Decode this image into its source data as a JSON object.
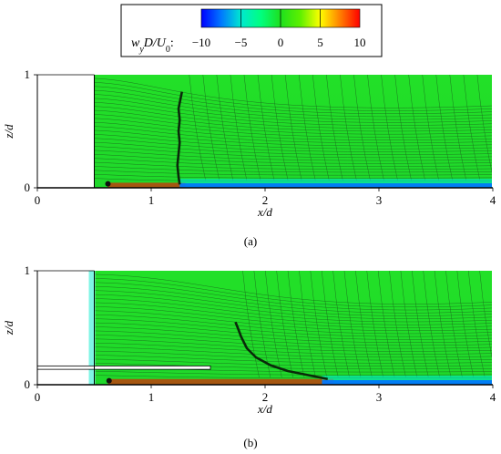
{
  "colorbar": {
    "label_parts": {
      "w": "w",
      "y": "y",
      "d": "D/U",
      "zero": "0",
      "colon": ":"
    },
    "ticks": [
      "−10",
      "−5",
      "0",
      "5",
      "10"
    ],
    "range": [
      -10,
      10
    ],
    "colors": [
      "#0000ff",
      "#0078ff",
      "#00e8d0",
      "#00ff80",
      "#1ee01e",
      "#5ef000",
      "#ffff00",
      "#ff8000",
      "#ff0000"
    ]
  },
  "chart_data": [
    {
      "type": "heatmap",
      "panel_label": "(a)",
      "xlabel": "x/d",
      "ylabel": "z/d",
      "xlim": [
        0,
        4
      ],
      "ylim": [
        0,
        1
      ],
      "xticks": [
        "0",
        "1",
        "2",
        "3",
        "4"
      ],
      "yticks": [
        "0",
        "1"
      ],
      "body_x": 0.5,
      "plate": null,
      "separation_line": [
        [
          1.25,
          0.03
        ],
        [
          1.24,
          0.1
        ],
        [
          1.23,
          0.2
        ],
        [
          1.24,
          0.3
        ],
        [
          1.25,
          0.4
        ],
        [
          1.24,
          0.5
        ],
        [
          1.25,
          0.6
        ],
        [
          1.24,
          0.7
        ],
        [
          1.26,
          0.8
        ],
        [
          1.27,
          0.85
        ]
      ],
      "bands": [
        {
          "x": [
            0.62,
            1.3
          ],
          "z": [
            0.0,
            0.045
          ],
          "value": 10
        },
        {
          "x": [
            1.25,
            4.0
          ],
          "z": [
            0.0,
            0.04
          ],
          "value": -8
        },
        {
          "x": [
            1.25,
            4.0
          ],
          "z": [
            0.04,
            0.08
          ],
          "value": -4
        }
      ],
      "vortex_x": 0.62
    },
    {
      "type": "heatmap",
      "panel_label": "(b)",
      "xlabel": "x/d",
      "ylabel": "z/d",
      "xlim": [
        0,
        4
      ],
      "ylim": [
        0,
        1
      ],
      "xticks": [
        "0",
        "1",
        "2",
        "3",
        "4"
      ],
      "yticks": [
        "0",
        "1"
      ],
      "body_x": 0.5,
      "plate": {
        "x": [
          0,
          1.52
        ],
        "z": [
          0.135,
          0.165
        ]
      },
      "separation_line": [
        [
          2.55,
          0.05
        ],
        [
          2.35,
          0.09
        ],
        [
          2.2,
          0.12
        ],
        [
          2.05,
          0.17
        ],
        [
          1.92,
          0.24
        ],
        [
          1.84,
          0.32
        ],
        [
          1.79,
          0.42
        ],
        [
          1.76,
          0.5
        ],
        [
          1.74,
          0.55
        ]
      ],
      "bands": [
        {
          "x": [
            0.62,
            2.6
          ],
          "z": [
            0.0,
            0.05
          ],
          "value": 10
        },
        {
          "x": [
            2.5,
            4.0
          ],
          "z": [
            0.0,
            0.04
          ],
          "value": -8
        },
        {
          "x": [
            2.5,
            4.0
          ],
          "z": [
            0.04,
            0.08
          ],
          "value": -4
        }
      ],
      "vortex_x": 0.63
    }
  ]
}
